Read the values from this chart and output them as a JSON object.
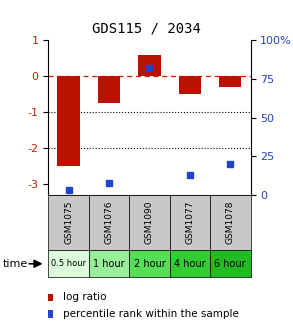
{
  "title": "GDS115 / 2034",
  "samples": [
    "GSM1075",
    "GSM1076",
    "GSM1090",
    "GSM1077",
    "GSM1078"
  ],
  "time_labels": [
    "0.5 hour",
    "1 hour",
    "2 hour",
    "4 hour",
    "6 hour"
  ],
  "log_ratio": [
    -2.5,
    -0.75,
    0.6,
    -0.5,
    -0.3
  ],
  "percentile": [
    3,
    8,
    82,
    13,
    20
  ],
  "bar_color": "#bb1100",
  "dot_color": "#2244cc",
  "ylim_left": [
    -3.3,
    1.0
  ],
  "ylim_right": [
    0,
    100
  ],
  "yticks_left": [
    1,
    0,
    -1,
    -2,
    -3
  ],
  "yticks_right": [
    0,
    25,
    50,
    75,
    100
  ],
  "ytick_labels_right": [
    "0",
    "25",
    "50",
    "75",
    "100%"
  ],
  "hline_y": 0,
  "dotted_lines": [
    -1,
    -2
  ],
  "sample_bg": "#c8c8c8",
  "time_colors": [
    "#ddfcdd",
    "#99ee99",
    "#55dd55",
    "#33cc33",
    "#22bb22"
  ],
  "legend_log_ratio": "log ratio",
  "legend_percentile": "percentile rank within the sample",
  "time_label": "time",
  "background_color": "#ffffff"
}
